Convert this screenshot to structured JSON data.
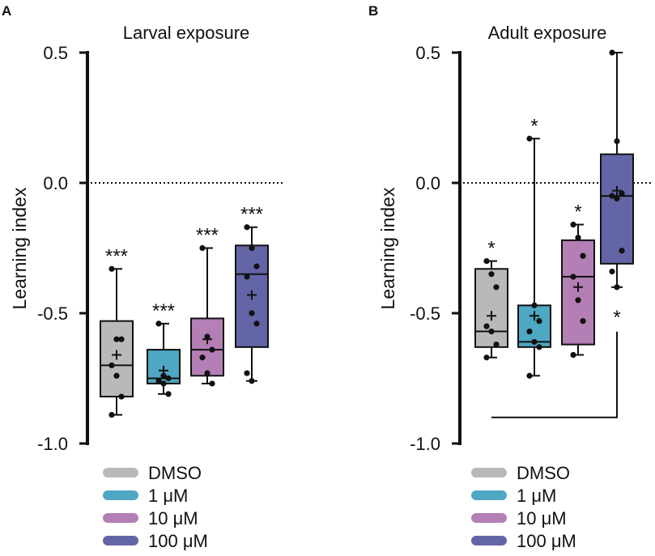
{
  "colors": {
    "dmso": "#b9b9bb",
    "uM1": "#4ea7c3",
    "uM10": "#b47fb5",
    "uM100": "#6465a6",
    "ink": "#111111"
  },
  "legend": [
    {
      "label": "DMSO",
      "color_key": "dmso"
    },
    {
      "label": "1 μM",
      "color_key": "uM1"
    },
    {
      "label": "10 μM",
      "color_key": "uM10"
    },
    {
      "label": "100 μM",
      "color_key": "uM100"
    }
  ],
  "chart_data": [
    {
      "type": "box",
      "panel": "A",
      "title": "Larval exposure",
      "ylabel": "Learning index",
      "ylim": [
        -1.0,
        0.5
      ],
      "yticks": [
        0.5,
        0.0,
        -0.5,
        -1.0
      ],
      "ytick_labels": [
        "0.5",
        "0.0",
        "-0.5",
        "-1.0"
      ],
      "reference_line": 0.0,
      "categories": [
        "DMSO",
        "1 μM",
        "10 μM",
        "100 μM"
      ],
      "boxes": [
        {
          "group": "DMSO",
          "min": -0.89,
          "q1": -0.82,
          "median": -0.7,
          "q3": -0.53,
          "max": -0.33,
          "mean": -0.66,
          "points": [
            -0.33,
            -0.6,
            -0.6,
            -0.7,
            -0.74,
            -0.82,
            -0.89
          ],
          "sig": "***"
        },
        {
          "group": "1 μM",
          "min": -0.81,
          "q1": -0.77,
          "median": -0.75,
          "q3": -0.64,
          "max": -0.54,
          "mean": -0.72,
          "points": [
            -0.54,
            -0.74,
            -0.75,
            -0.76,
            -0.77,
            -0.81
          ],
          "sig": "***"
        },
        {
          "group": "10 μM",
          "min": -0.77,
          "q1": -0.74,
          "median": -0.64,
          "q3": -0.52,
          "max": -0.25,
          "mean": -0.6,
          "points": [
            -0.25,
            -0.59,
            -0.64,
            -0.67,
            -0.73,
            -0.77
          ],
          "sig": "***"
        },
        {
          "group": "100 μM",
          "min": -0.76,
          "q1": -0.63,
          "median": -0.35,
          "q3": -0.24,
          "max": -0.17,
          "mean": -0.43,
          "points": [
            -0.17,
            -0.25,
            -0.32,
            -0.36,
            -0.5,
            -0.54,
            -0.73,
            -0.76
          ],
          "sig": "***"
        }
      ]
    },
    {
      "type": "box",
      "panel": "B",
      "title": "Adult exposure",
      "ylabel": "Learning index",
      "ylim": [
        -1.0,
        0.5
      ],
      "yticks": [
        0.5,
        0.0,
        -0.5,
        -1.0
      ],
      "ytick_labels": [
        "0.5",
        "0.0",
        "-0.5",
        "-1.0"
      ],
      "reference_line": 0.0,
      "categories": [
        "DMSO",
        "1 μM",
        "10 μM",
        "100 μM"
      ],
      "boxes": [
        {
          "group": "DMSO",
          "min": -0.67,
          "q1": -0.63,
          "median": -0.57,
          "q3": -0.33,
          "max": -0.3,
          "mean": -0.51,
          "points": [
            -0.3,
            -0.35,
            -0.4,
            -0.55,
            -0.57,
            -0.62,
            -0.67
          ],
          "sig": "*"
        },
        {
          "group": "1 μM",
          "min": -0.74,
          "q1": -0.63,
          "median": -0.61,
          "q3": -0.47,
          "max": 0.17,
          "mean": -0.51,
          "points": [
            0.17,
            -0.47,
            -0.53,
            -0.57,
            -0.61,
            -0.63,
            -0.74
          ],
          "sig": "*"
        },
        {
          "group": "10 μM",
          "min": -0.66,
          "q1": -0.62,
          "median": -0.36,
          "q3": -0.22,
          "max": -0.16,
          "mean": -0.4,
          "points": [
            -0.16,
            -0.21,
            -0.28,
            -0.36,
            -0.45,
            -0.53,
            -0.66
          ],
          "sig": "*"
        },
        {
          "group": "100 μM",
          "min": -0.4,
          "q1": -0.31,
          "median": -0.05,
          "q3": 0.11,
          "max": 0.5,
          "mean": -0.03,
          "points": [
            0.5,
            0.16,
            -0.04,
            -0.05,
            -0.06,
            -0.26,
            -0.34,
            -0.4
          ],
          "sig": ""
        }
      ],
      "bracket": {
        "label": "*",
        "from_group": "DMSO",
        "to_group": "100 μM",
        "y_value": -0.9
      }
    }
  ]
}
